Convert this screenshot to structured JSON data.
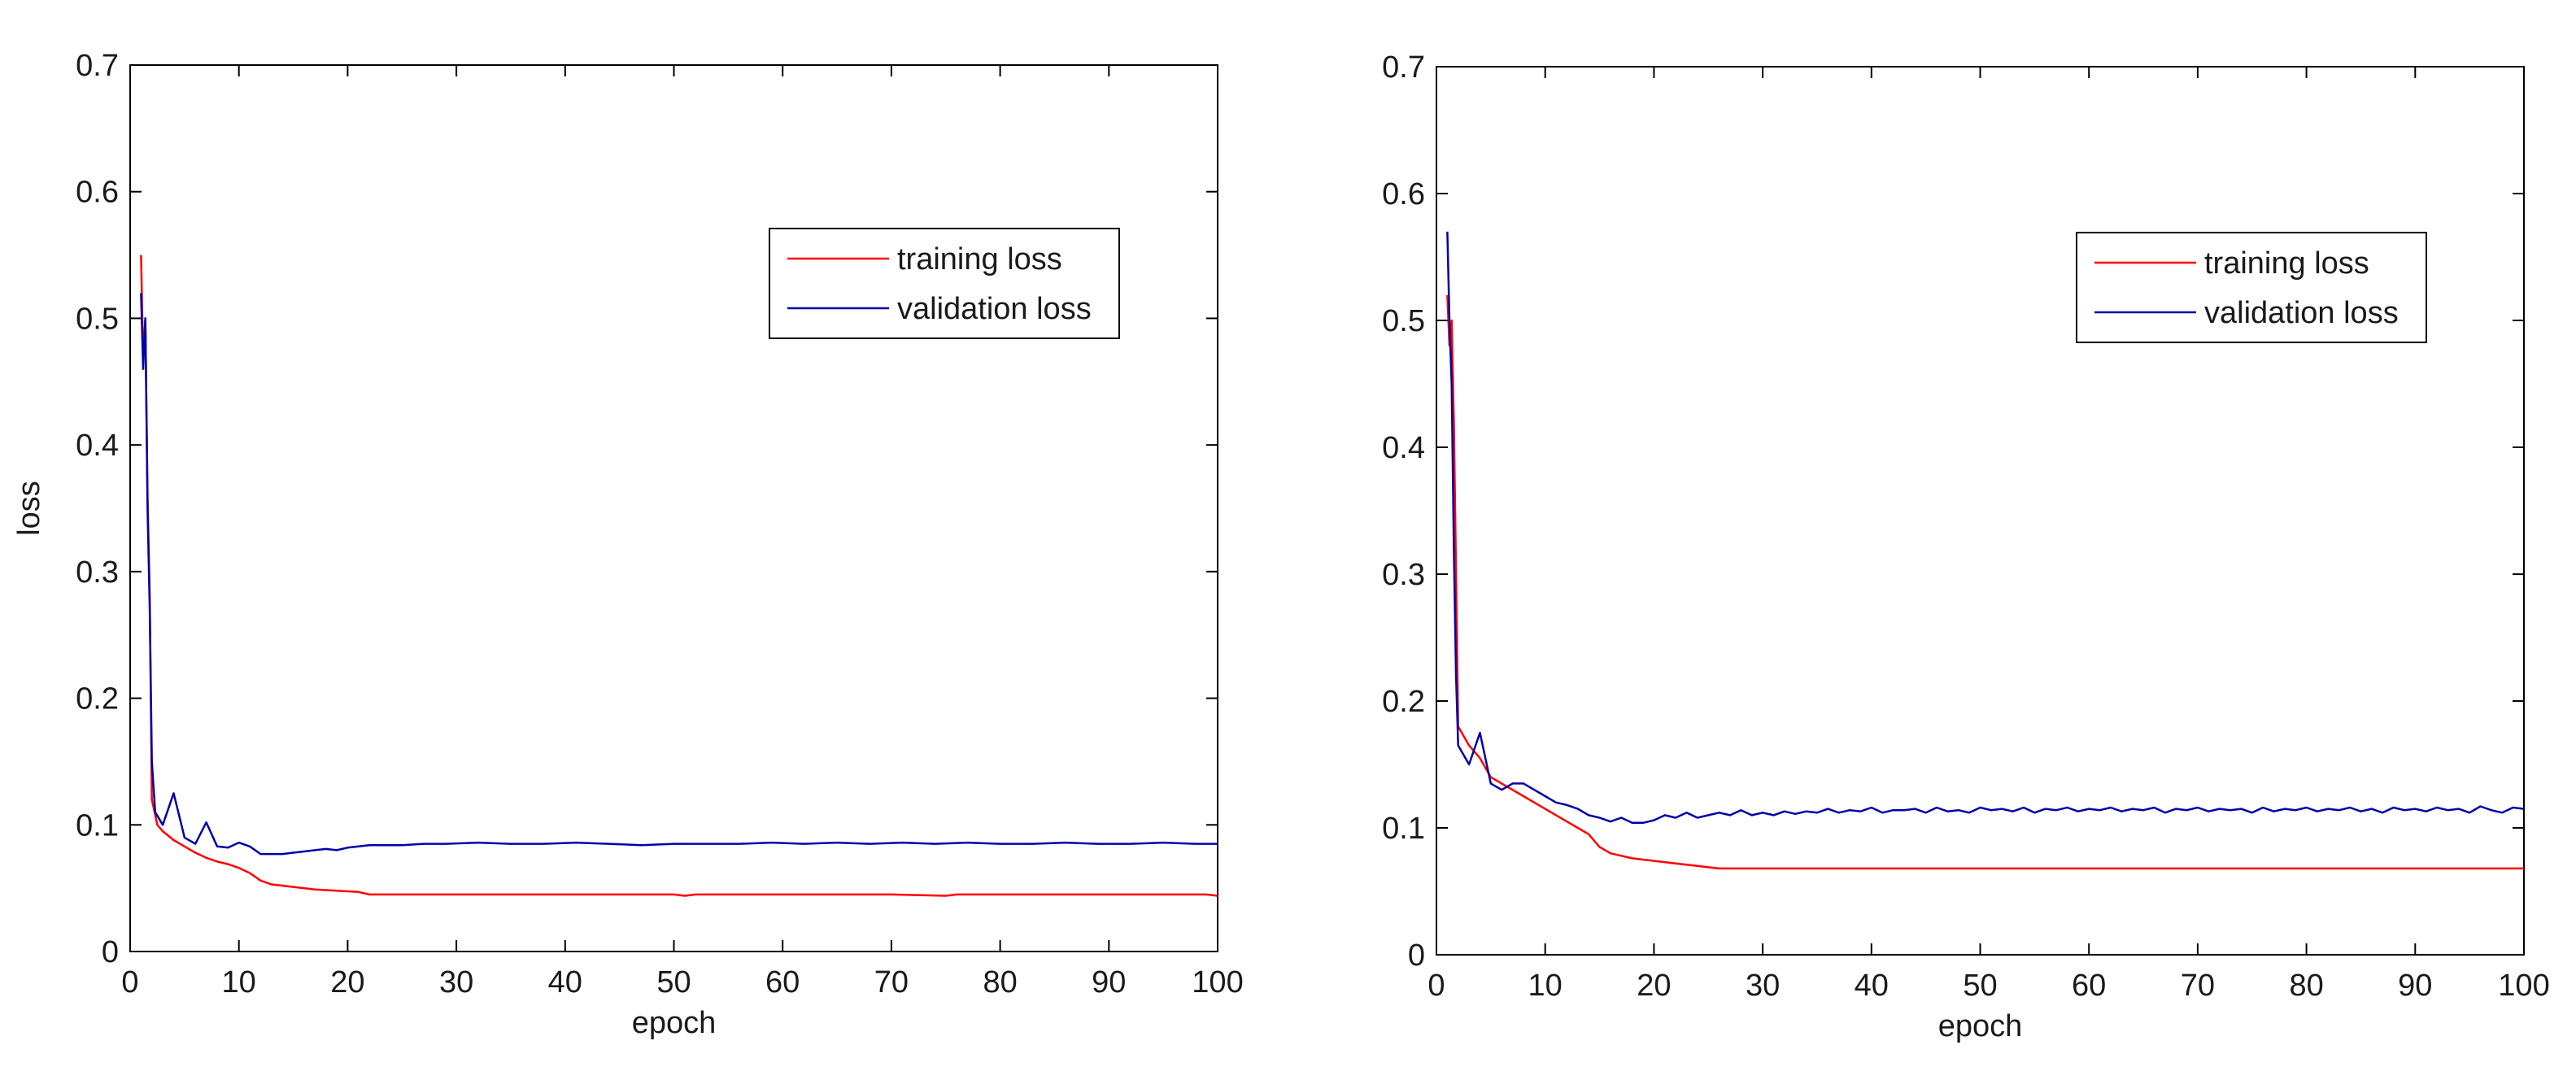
{
  "colors": {
    "training": "#ff0000",
    "validation": "#0000aa",
    "axes": "#000000",
    "background": "#ffffff"
  },
  "chart_data": [
    {
      "type": "line",
      "title": "",
      "xlabel": "epoch",
      "ylabel": "loss",
      "xlim": [
        0,
        100
      ],
      "ylim": [
        0,
        0.7
      ],
      "xticks": [
        0,
        10,
        20,
        30,
        40,
        50,
        60,
        70,
        80,
        90,
        100
      ],
      "xtick_labels": [
        "0",
        "10",
        "20",
        "30",
        "40",
        "50",
        "60",
        "70",
        "80",
        "90",
        "100"
      ],
      "yticks": [
        0,
        0.1,
        0.2,
        0.3,
        0.4,
        0.5,
        0.6,
        0.7
      ],
      "ytick_labels": [
        "0",
        "0.1",
        "0.2",
        "0.3",
        "0.4",
        "0.5",
        "0.6",
        "0.7"
      ],
      "legend_location": "upper-right",
      "series": [
        {
          "name": "training loss",
          "color_key": "training",
          "points": [
            [
              1,
              0.55
            ],
            [
              1.2,
              0.47
            ],
            [
              1.4,
              0.5
            ],
            [
              1.6,
              0.36
            ],
            [
              1.8,
              0.28
            ],
            [
              2,
              0.12
            ],
            [
              2.5,
              0.1
            ],
            [
              3,
              0.095
            ],
            [
              4,
              0.088
            ],
            [
              5,
              0.083
            ],
            [
              6,
              0.078
            ],
            [
              7,
              0.074
            ],
            [
              8,
              0.071
            ],
            [
              9,
              0.069
            ],
            [
              10,
              0.066
            ],
            [
              11,
              0.062
            ],
            [
              12,
              0.056
            ],
            [
              13,
              0.053
            ],
            [
              14,
              0.052
            ],
            [
              15,
              0.051
            ],
            [
              17,
              0.049
            ],
            [
              19,
              0.048
            ],
            [
              21,
              0.047
            ],
            [
              22,
              0.045
            ],
            [
              25,
              0.045
            ],
            [
              30,
              0.045
            ],
            [
              40,
              0.045
            ],
            [
              50,
              0.045
            ],
            [
              51,
              0.044
            ],
            [
              52,
              0.045
            ],
            [
              60,
              0.045
            ],
            [
              70,
              0.045
            ],
            [
              75,
              0.044
            ],
            [
              76,
              0.045
            ],
            [
              85,
              0.045
            ],
            [
              95,
              0.045
            ],
            [
              99,
              0.045
            ],
            [
              100,
              0.044
            ]
          ]
        },
        {
          "name": "validation loss",
          "color_key": "validation",
          "points": [
            [
              1,
              0.52
            ],
            [
              1.2,
              0.46
            ],
            [
              1.4,
              0.5
            ],
            [
              1.6,
              0.35
            ],
            [
              1.8,
              0.27
            ],
            [
              2,
              0.15
            ],
            [
              2.3,
              0.11
            ],
            [
              3,
              0.1
            ],
            [
              4,
              0.125
            ],
            [
              5,
              0.09
            ],
            [
              6,
              0.085
            ],
            [
              7,
              0.102
            ],
            [
              8,
              0.083
            ],
            [
              9,
              0.082
            ],
            [
              10,
              0.086
            ],
            [
              11,
              0.083
            ],
            [
              12,
              0.077
            ],
            [
              13,
              0.077
            ],
            [
              14,
              0.077
            ],
            [
              15,
              0.078
            ],
            [
              16,
              0.079
            ],
            [
              17,
              0.08
            ],
            [
              18,
              0.081
            ],
            [
              19,
              0.08
            ],
            [
              20,
              0.082
            ],
            [
              21,
              0.083
            ],
            [
              22,
              0.084
            ],
            [
              25,
              0.084
            ],
            [
              27,
              0.085
            ],
            [
              29,
              0.085
            ],
            [
              32,
              0.086
            ],
            [
              35,
              0.085
            ],
            [
              38,
              0.085
            ],
            [
              41,
              0.086
            ],
            [
              44,
              0.085
            ],
            [
              47,
              0.084
            ],
            [
              50,
              0.085
            ],
            [
              53,
              0.085
            ],
            [
              56,
              0.085
            ],
            [
              59,
              0.086
            ],
            [
              62,
              0.085
            ],
            [
              65,
              0.086
            ],
            [
              68,
              0.085
            ],
            [
              71,
              0.086
            ],
            [
              74,
              0.085
            ],
            [
              77,
              0.086
            ],
            [
              80,
              0.085
            ],
            [
              83,
              0.085
            ],
            [
              86,
              0.086
            ],
            [
              89,
              0.085
            ],
            [
              92,
              0.085
            ],
            [
              95,
              0.086
            ],
            [
              98,
              0.085
            ],
            [
              100,
              0.085
            ]
          ]
        }
      ]
    },
    {
      "type": "line",
      "title": "",
      "xlabel": "epoch",
      "ylabel": "",
      "xlim": [
        0,
        100
      ],
      "ylim": [
        0,
        0.7
      ],
      "xticks": [
        0,
        10,
        20,
        30,
        40,
        50,
        60,
        70,
        80,
        90,
        100
      ],
      "xtick_labels": [
        "0",
        "10",
        "20",
        "30",
        "40",
        "50",
        "60",
        "70",
        "80",
        "90",
        "100"
      ],
      "yticks": [
        0,
        0.1,
        0.2,
        0.3,
        0.4,
        0.5,
        0.6,
        0.7
      ],
      "ytick_labels": [
        "0",
        "0.1",
        "0.2",
        "0.3",
        "0.4",
        "0.5",
        "0.6",
        "0.7"
      ],
      "legend_location": "upper-right",
      "series": [
        {
          "name": "training loss",
          "color_key": "training",
          "points": [
            [
              1,
              0.52
            ],
            [
              1.2,
              0.48
            ],
            [
              1.4,
              0.5
            ],
            [
              1.6,
              0.42
            ],
            [
              1.8,
              0.3
            ],
            [
              2,
              0.18
            ],
            [
              3,
              0.165
            ],
            [
              4,
              0.155
            ],
            [
              5,
              0.14
            ],
            [
              6,
              0.135
            ],
            [
              7,
              0.13
            ],
            [
              8,
              0.125
            ],
            [
              9,
              0.12
            ],
            [
              10,
              0.115
            ],
            [
              11,
              0.11
            ],
            [
              12,
              0.105
            ],
            [
              13,
              0.1
            ],
            [
              14,
              0.095
            ],
            [
              15,
              0.085
            ],
            [
              16,
              0.08
            ],
            [
              17,
              0.078
            ],
            [
              18,
              0.076
            ],
            [
              19,
              0.075
            ],
            [
              20,
              0.074
            ],
            [
              21,
              0.073
            ],
            [
              22,
              0.072
            ],
            [
              23,
              0.071
            ],
            [
              24,
              0.07
            ],
            [
              25,
              0.069
            ],
            [
              26,
              0.068
            ],
            [
              27,
              0.068
            ],
            [
              30,
              0.068
            ],
            [
              40,
              0.068
            ],
            [
              50,
              0.068
            ],
            [
              60,
              0.068
            ],
            [
              70,
              0.068
            ],
            [
              80,
              0.068
            ],
            [
              90,
              0.068
            ],
            [
              100,
              0.068
            ]
          ]
        },
        {
          "name": "validation loss",
          "color_key": "validation",
          "points": [
            [
              1,
              0.57
            ],
            [
              1.2,
              0.5
            ],
            [
              1.4,
              0.45
            ],
            [
              1.6,
              0.32
            ],
            [
              1.8,
              0.22
            ],
            [
              2,
              0.165
            ],
            [
              3,
              0.15
            ],
            [
              4,
              0.175
            ],
            [
              5,
              0.135
            ],
            [
              6,
              0.13
            ],
            [
              7,
              0.135
            ],
            [
              8,
              0.135
            ],
            [
              9,
              0.13
            ],
            [
              10,
              0.125
            ],
            [
              11,
              0.12
            ],
            [
              12,
              0.118
            ],
            [
              13,
              0.115
            ],
            [
              14,
              0.11
            ],
            [
              15,
              0.108
            ],
            [
              16,
              0.105
            ],
            [
              17,
              0.108
            ],
            [
              18,
              0.104
            ],
            [
              19,
              0.104
            ],
            [
              20,
              0.106
            ],
            [
              21,
              0.11
            ],
            [
              22,
              0.108
            ],
            [
              23,
              0.112
            ],
            [
              24,
              0.108
            ],
            [
              25,
              0.11
            ],
            [
              26,
              0.112
            ],
            [
              27,
              0.11
            ],
            [
              28,
              0.114
            ],
            [
              29,
              0.11
            ],
            [
              30,
              0.112
            ],
            [
              31,
              0.11
            ],
            [
              32,
              0.113
            ],
            [
              33,
              0.111
            ],
            [
              34,
              0.113
            ],
            [
              35,
              0.112
            ],
            [
              36,
              0.115
            ],
            [
              37,
              0.112
            ],
            [
              38,
              0.114
            ],
            [
              39,
              0.113
            ],
            [
              40,
              0.116
            ],
            [
              41,
              0.112
            ],
            [
              42,
              0.114
            ],
            [
              43,
              0.114
            ],
            [
              44,
              0.115
            ],
            [
              45,
              0.112
            ],
            [
              46,
              0.116
            ],
            [
              47,
              0.113
            ],
            [
              48,
              0.114
            ],
            [
              49,
              0.112
            ],
            [
              50,
              0.116
            ],
            [
              51,
              0.114
            ],
            [
              52,
              0.115
            ],
            [
              53,
              0.113
            ],
            [
              54,
              0.116
            ],
            [
              55,
              0.112
            ],
            [
              56,
              0.115
            ],
            [
              57,
              0.114
            ],
            [
              58,
              0.116
            ],
            [
              59,
              0.113
            ],
            [
              60,
              0.115
            ],
            [
              61,
              0.114
            ],
            [
              62,
              0.116
            ],
            [
              63,
              0.113
            ],
            [
              64,
              0.115
            ],
            [
              65,
              0.114
            ],
            [
              66,
              0.116
            ],
            [
              67,
              0.112
            ],
            [
              68,
              0.115
            ],
            [
              69,
              0.114
            ],
            [
              70,
              0.116
            ],
            [
              71,
              0.113
            ],
            [
              72,
              0.115
            ],
            [
              73,
              0.114
            ],
            [
              74,
              0.115
            ],
            [
              75,
              0.112
            ],
            [
              76,
              0.116
            ],
            [
              77,
              0.113
            ],
            [
              78,
              0.115
            ],
            [
              79,
              0.114
            ],
            [
              80,
              0.116
            ],
            [
              81,
              0.113
            ],
            [
              82,
              0.115
            ],
            [
              83,
              0.114
            ],
            [
              84,
              0.116
            ],
            [
              85,
              0.113
            ],
            [
              86,
              0.115
            ],
            [
              87,
              0.112
            ],
            [
              88,
              0.116
            ],
            [
              89,
              0.114
            ],
            [
              90,
              0.115
            ],
            [
              91,
              0.113
            ],
            [
              92,
              0.116
            ],
            [
              93,
              0.114
            ],
            [
              94,
              0.115
            ],
            [
              95,
              0.112
            ],
            [
              96,
              0.117
            ],
            [
              97,
              0.114
            ],
            [
              98,
              0.112
            ],
            [
              99,
              0.116
            ],
            [
              100,
              0.115
            ]
          ]
        }
      ]
    }
  ]
}
